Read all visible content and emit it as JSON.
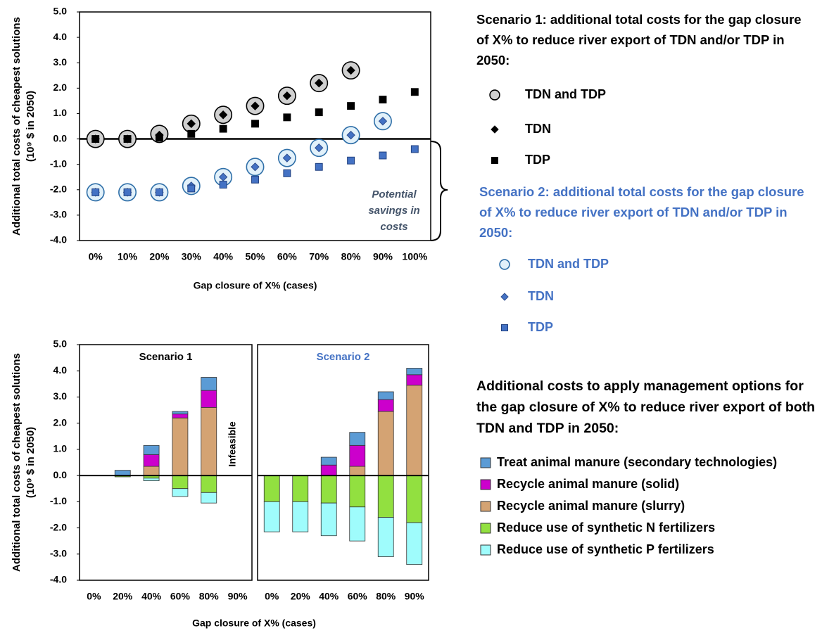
{
  "chart_data": [
    {
      "type": "scatter",
      "y_label": [
        "Additional total costs of cheapest solutions",
        "(10⁹ $ in 2050)"
      ],
      "x_label": "Gap closure of X% (cases)",
      "categories": [
        "0%",
        "10%",
        "20%",
        "30%",
        "40%",
        "50%",
        "60%",
        "70%",
        "80%",
        "90%",
        "100%"
      ],
      "ylim": [
        -4,
        5
      ],
      "yticks": [
        {
          "value": -4,
          "label": "-4.0"
        },
        {
          "value": -3,
          "label": "-3.0"
        },
        {
          "value": -2,
          "label": "-2.0"
        },
        {
          "value": -1,
          "label": "-1.0"
        },
        {
          "value": 0,
          "label": "0.0"
        },
        {
          "value": 1,
          "label": "1.0"
        },
        {
          "value": 2,
          "label": "2.0"
        },
        {
          "value": 3,
          "label": "3.0"
        },
        {
          "value": 4,
          "label": "4.0"
        },
        {
          "value": 5,
          "label": "5.0"
        }
      ],
      "annotation": "Potential savings in costs",
      "scenarios": [
        {
          "legend_title": "Scenario 1: additional total costs for the gap closure of X% to reduce river export of TDN and/or TDP in 2050:",
          "title_color": "#000000",
          "series": [
            {
              "name": "TDN and TDP",
              "marker": "circle",
              "color": "#d0d0d0",
              "edge": "#000000",
              "values": [
                0,
                0,
                0.2,
                0.6,
                0.95,
                1.3,
                1.7,
                2.2,
                2.7,
                null,
                null
              ]
            },
            {
              "name": "TDN",
              "marker": "diamond",
              "color": "#000000",
              "edge": "#000000",
              "values": [
                0,
                0,
                0.15,
                0.6,
                0.95,
                1.3,
                1.7,
                2.2,
                2.7,
                null,
                null
              ]
            },
            {
              "name": "TDP",
              "marker": "square",
              "color": "#000000",
              "edge": "#000000",
              "values": [
                0,
                0,
                0.05,
                0.2,
                0.4,
                0.6,
                0.85,
                1.05,
                1.3,
                1.55,
                1.85
              ]
            }
          ]
        },
        {
          "legend_title": "Scenario 2: additional total costs for the gap closure of X% to reduce river export of TDN and/or TDP in 2050:",
          "title_color": "#4472c4",
          "series": [
            {
              "name": "TDN and TDP",
              "marker": "circle",
              "color": "#e2f1fa",
              "edge": "#2f6fa8",
              "values": [
                -2.1,
                -2.1,
                -2.1,
                -1.85,
                -1.5,
                -1.1,
                -0.75,
                -0.35,
                0.15,
                0.7,
                null
              ]
            },
            {
              "name": "TDN",
              "marker": "diamond",
              "color": "#4472c4",
              "edge": "#2f4f8f",
              "values": [
                -2.1,
                -2.1,
                -2.1,
                -1.85,
                -1.5,
                -1.1,
                -0.75,
                -0.35,
                0.15,
                0.7,
                null
              ]
            },
            {
              "name": "TDP",
              "marker": "square",
              "color": "#4472c4",
              "edge": "#1f3f7f",
              "values": [
                -2.1,
                -2.1,
                -2.1,
                -1.95,
                -1.8,
                -1.6,
                -1.35,
                -1.1,
                -0.85,
                -0.65,
                -0.4
              ]
            }
          ]
        }
      ]
    },
    {
      "type": "stacked_bar",
      "y_label": [
        "Additional total costs of cheapest solutions",
        "(10⁹ $ in 2050)"
      ],
      "x_label": "Gap closure of X% (cases)",
      "legend_title": "Additional costs to apply management options for the gap closure of X% to reduce river export of both TDN and TDP in 2050:",
      "ylim": [
        -4,
        5
      ],
      "yticks": [
        {
          "value": -4,
          "label": "-4.0"
        },
        {
          "value": -3,
          "label": "-3.0"
        },
        {
          "value": -2,
          "label": "-2.0"
        },
        {
          "value": -1,
          "label": "-1.0"
        },
        {
          "value": 0,
          "label": "0.0"
        },
        {
          "value": 1,
          "label": "1.0"
        },
        {
          "value": 2,
          "label": "2.0"
        },
        {
          "value": 3,
          "label": "3.0"
        },
        {
          "value": 4,
          "label": "4.0"
        },
        {
          "value": 5,
          "label": "5.0"
        }
      ],
      "series": [
        {
          "name": "Treat animal manure (secondary technologies)",
          "color": "#5b9bd5"
        },
        {
          "name": "Recycle animal manure (solid)",
          "color": "#cc00cc"
        },
        {
          "name": "Recycle animal manure (slurry)",
          "color": "#d4a373"
        },
        {
          "name": "Reduce use of synthetic N fertilizers",
          "color": "#92e040"
        },
        {
          "name": "Reduce use of synthetic P fertilizers",
          "color": "#9ffcfc"
        }
      ],
      "panels": [
        {
          "title": "Scenario 1",
          "title_color": "#000000",
          "annotation": "Infeasible",
          "categories": [
            "0%",
            "20%",
            "40%",
            "60%",
            "80%",
            "90%"
          ],
          "values": [
            [
              null,
              0.2,
              0.35,
              0.1,
              0.5,
              null
            ],
            [
              null,
              0,
              0.45,
              0.15,
              0.65,
              null
            ],
            [
              null,
              0,
              0.35,
              2.2,
              2.6,
              null
            ],
            [
              null,
              -0.05,
              -0.1,
              -0.5,
              -0.65,
              null
            ],
            [
              null,
              0,
              -0.1,
              -0.3,
              -0.4,
              null
            ]
          ]
        },
        {
          "title": "Scenario 2",
          "title_color": "#4472c4",
          "categories": [
            "0%",
            "20%",
            "40%",
            "60%",
            "80%",
            "90%"
          ],
          "values": [
            [
              0,
              0,
              0.3,
              0.5,
              0.3,
              0.25
            ],
            [
              0,
              0,
              0.4,
              0.8,
              0.45,
              0.4
            ],
            [
              0,
              0,
              0,
              0.35,
              2.45,
              3.45
            ],
            [
              -1.0,
              -1.0,
              -1.05,
              -1.2,
              -1.6,
              -1.8
            ],
            [
              -1.15,
              -1.15,
              -1.25,
              -1.3,
              -1.5,
              -1.6
            ]
          ]
        }
      ]
    }
  ]
}
